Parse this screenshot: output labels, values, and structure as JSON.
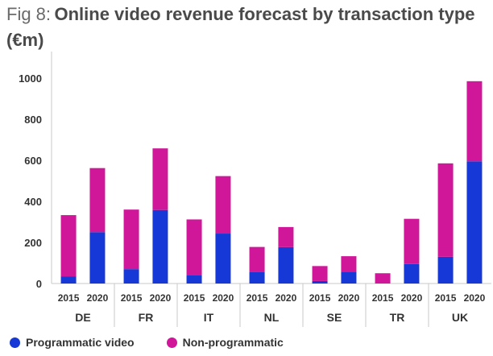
{
  "title": {
    "prefix": "Fig 8:",
    "main": "Online video revenue forecast by transaction type (€m)"
  },
  "colors": {
    "programmatic": "#1538d6",
    "non_programmatic": "#d0179a",
    "axis": "#c8c8c8"
  },
  "chart_data": {
    "type": "bar",
    "stacked": true,
    "groups": [
      "DE",
      "FR",
      "IT",
      "NL",
      "SE",
      "TR",
      "UK"
    ],
    "categories": [
      "2015",
      "2020",
      "2015",
      "2020",
      "2015",
      "2020",
      "2015",
      "2020",
      "2015",
      "2020",
      "2015",
      "2020",
      "2015",
      "2020"
    ],
    "series": [
      {
        "name": "Programmatic video",
        "values": [
          35,
          250,
          70,
          358,
          42,
          243,
          55,
          177,
          12,
          58,
          3,
          95,
          130,
          595
        ]
      },
      {
        "name": "Non-programmatic",
        "values": [
          298,
          312,
          290,
          300,
          270,
          280,
          123,
          98,
          73,
          75,
          47,
          220,
          455,
          390
        ]
      }
    ],
    "yticks": [
      0,
      200,
      400,
      600,
      800,
      1000
    ],
    "ylim": [
      0,
      1100
    ],
    "grid": false,
    "legend_position": "bottom-left"
  }
}
